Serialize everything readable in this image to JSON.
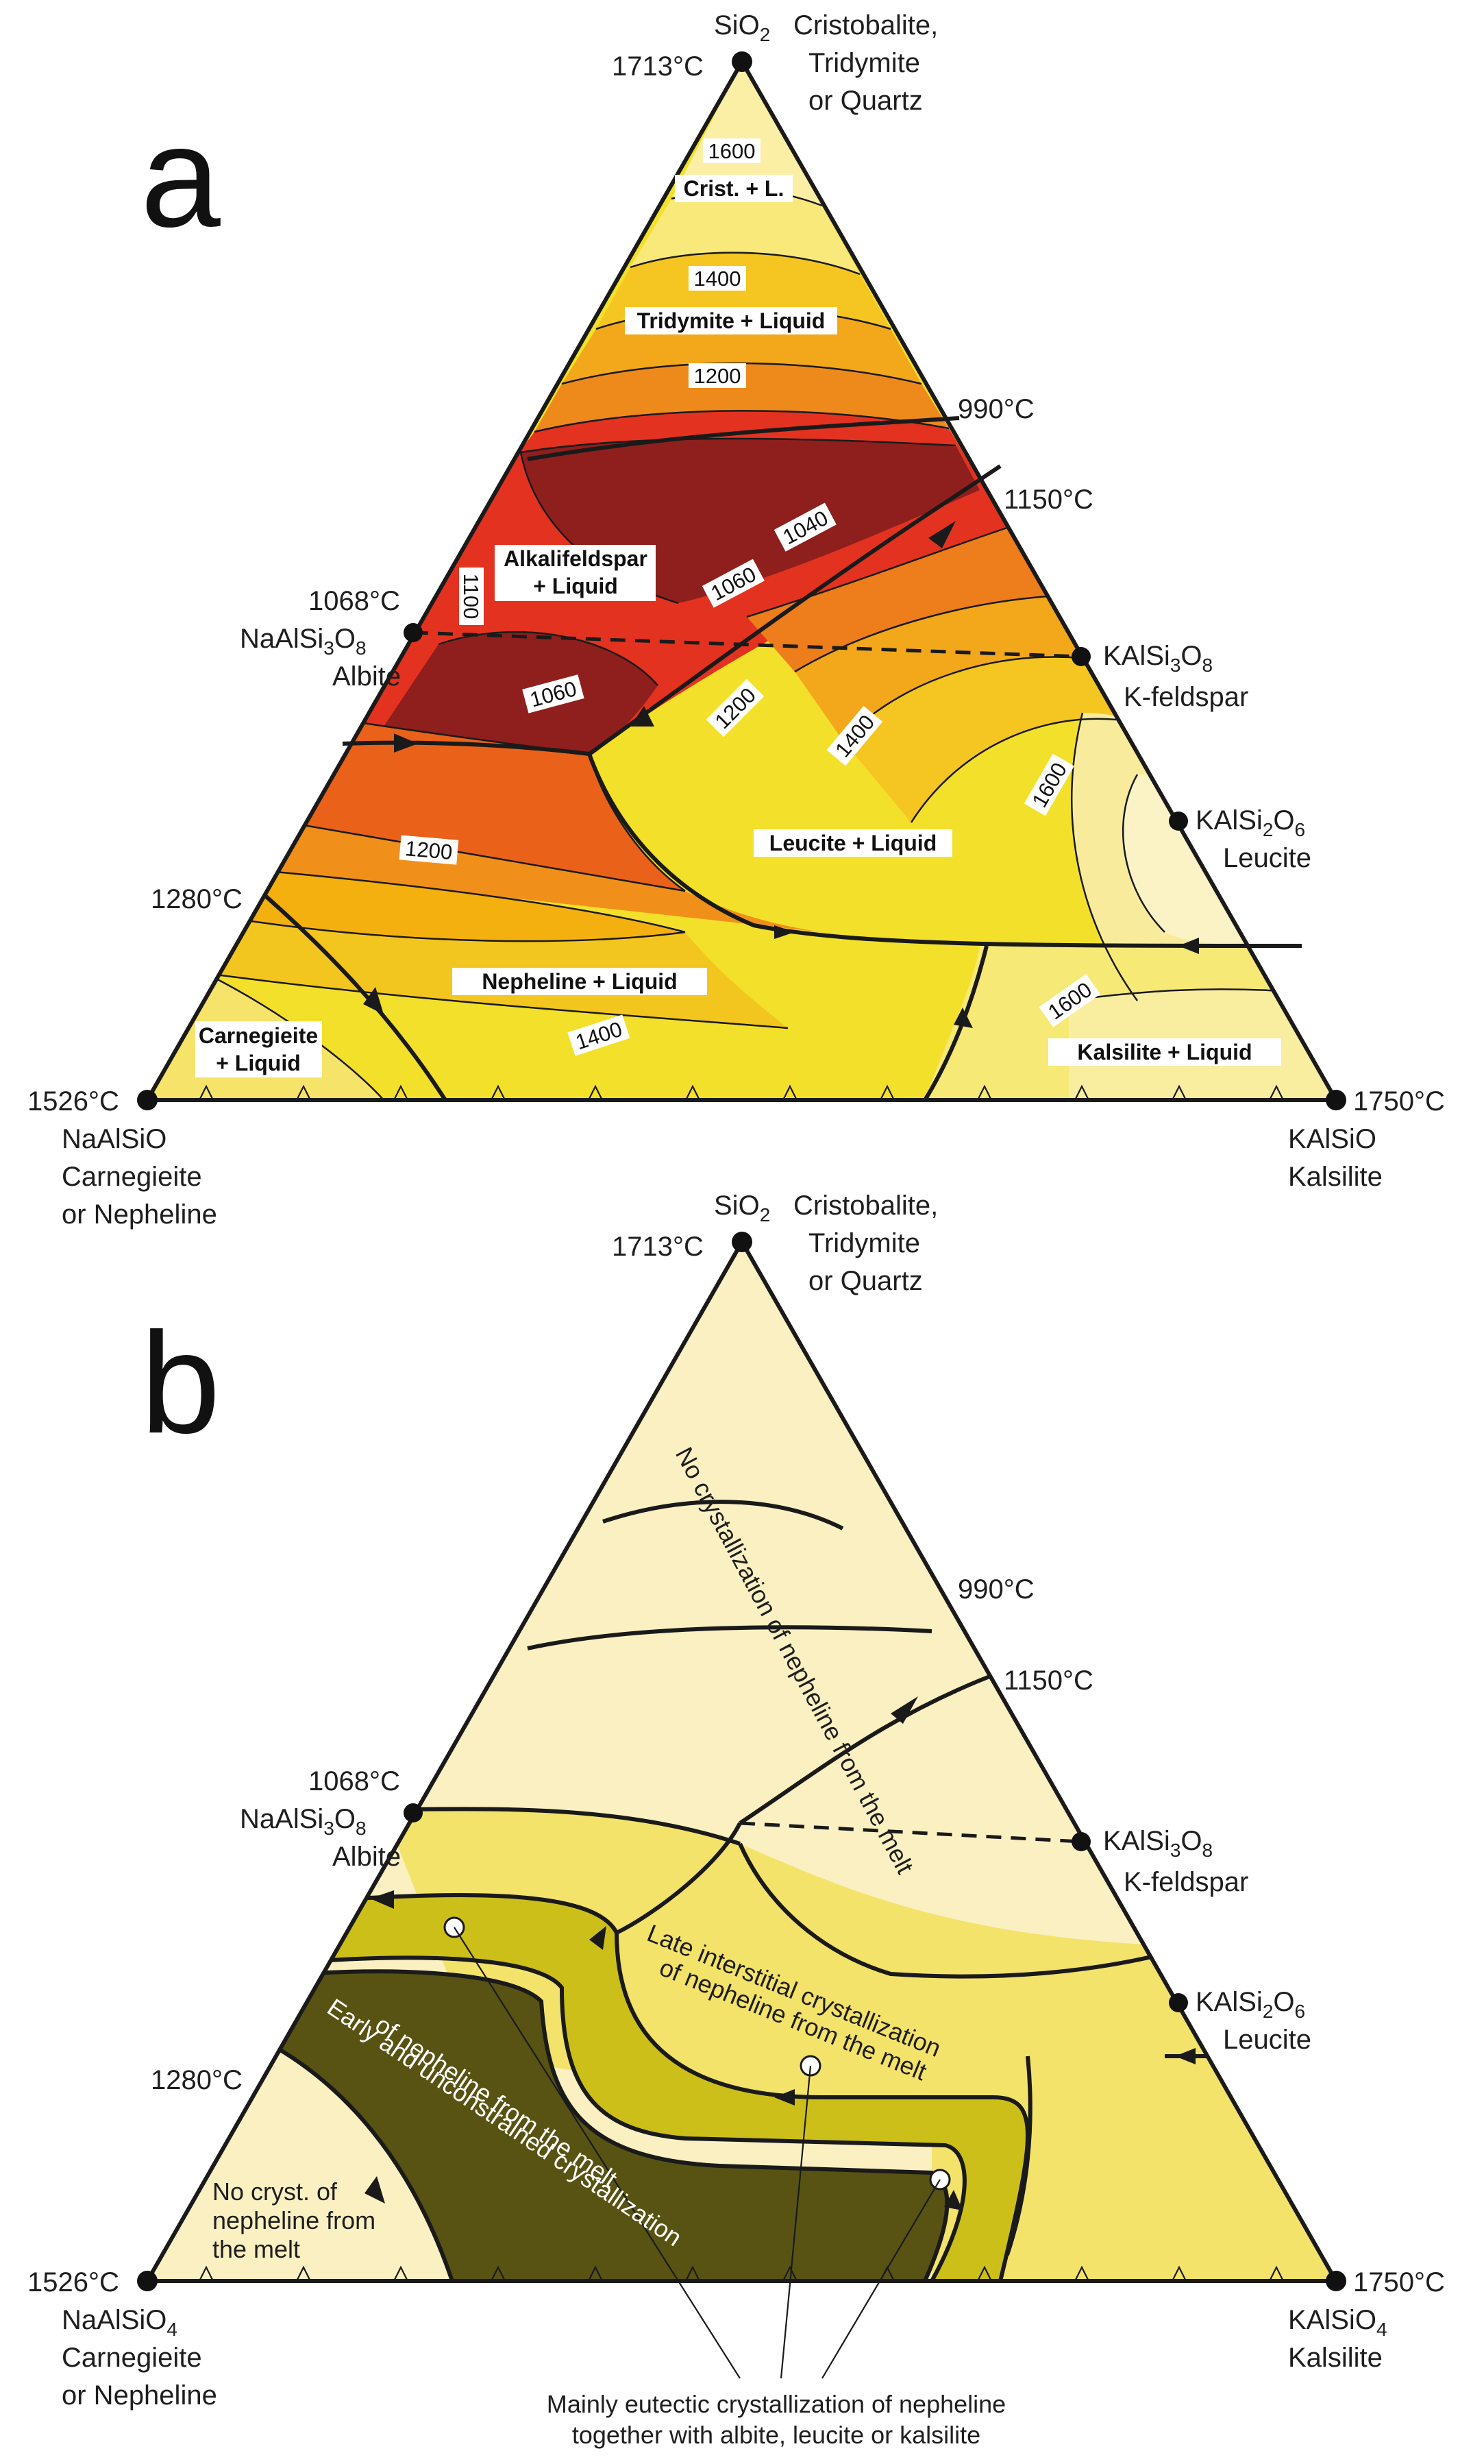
{
  "panel_a": {
    "letter": "a",
    "apexes": {
      "top": {
        "formula_main": "SiO",
        "formula_sub": "2",
        "mineral_1": "Cristobalite,",
        "mineral_2": "Tridymite",
        "mineral_3": "or Quartz",
        "temp": "1713°C"
      },
      "left": {
        "formula": "NaAlSiO",
        "mineral_1": "Carnegieite",
        "mineral_2": "or Nepheline",
        "temp": "1526°C"
      },
      "right": {
        "formula": "KAlSiO",
        "mineral": "Kalsilite",
        "temp": "1750°C"
      }
    },
    "points": {
      "albite": {
        "temp": "1068°C",
        "f1": "NaAlSi",
        "s1": "3",
        "f2": "O",
        "s2": "8",
        "name": "Albite"
      },
      "kfeldspar": {
        "f1": "KAlSi",
        "s1": "3",
        "f2": "O",
        "s2": "8",
        "name": "K-feldspar"
      },
      "leucite": {
        "f1": "KAlSi",
        "s1": "2",
        "f2": "O",
        "s2": "6",
        "name": "Leucite"
      }
    },
    "temps": {
      "t990": "990°C",
      "t1150": "1150°C",
      "t1280": "1280°C"
    },
    "fields": {
      "crist": "Crist. + L.",
      "tridymite": "Tridymite + Liquid",
      "alkali_1": "Alkalifeldspar",
      "alkali_2": "+ Liquid",
      "leucite": "Leucite + Liquid",
      "nepheline": "Nepheline + Liquid",
      "carnegieite_1": "Carnegieite",
      "carnegieite_2": "+ Liquid",
      "kalsilite": "Kalsilite + Liquid"
    },
    "isotherms": [
      "1600",
      "1400",
      "1200",
      "1100",
      "1040",
      "1060",
      "1060",
      "1200",
      "1400",
      "1600",
      "1200",
      "1400",
      "1600"
    ]
  },
  "panel_b": {
    "letter": "b",
    "apexes": {
      "top": {
        "formula_main": "SiO",
        "formula_sub": "2",
        "mineral_1": "Cristobalite,",
        "mineral_2": "Tridymite",
        "mineral_3": "or Quartz",
        "temp": "1713°C"
      },
      "left": {
        "formula_main": "NaAlSiO",
        "formula_sub": "4",
        "mineral_1": "Carnegieite",
        "mineral_2": "or Nepheline",
        "temp": "1526°C"
      },
      "right": {
        "formula_main": "KAlSiO",
        "formula_sub": "4",
        "mineral": "Kalsilite",
        "temp": "1750°C"
      }
    },
    "points": {
      "albite": {
        "temp": "1068°C",
        "f1": "NaAlSi",
        "s1": "3",
        "f2": "O",
        "s2": "8",
        "name": "Albite"
      },
      "kfeldspar": {
        "f1": "KAlSi",
        "s1": "3",
        "f2": "O",
        "s2": "8",
        "name": "K-feldspar"
      },
      "leucite": {
        "f1": "KAlSi",
        "s1": "2",
        "f2": "O",
        "s2": "6",
        "name": "Leucite"
      }
    },
    "temps": {
      "t990": "990°C",
      "t1150": "1150°C",
      "t1280": "1280°C"
    },
    "zones": {
      "no_cryst": "No crystallization of nepheline from the melt",
      "late_1": "Late interstitial crystallization",
      "late_2": "of nepheline from the melt",
      "early_1": "Early and unconstrained crystallization",
      "early_2": "of nepheline from the melt",
      "nocryst_1": "No cryst. of",
      "nocryst_2": "nepheline from",
      "nocryst_3": "the melt",
      "eutectic_1": "Mainly eutectic crystallization of nepheline",
      "eutectic_2": "together with albite, leucite or kalsilite"
    }
  },
  "colors": {
    "pale": "#fbf0c0",
    "lightyellow": "#f8e98c",
    "yellow": "#f2df26",
    "amber": "#f5b10f",
    "orange": "#ee7d1b",
    "redorange": "#e8531b",
    "red": "#d8231f",
    "darkred": "#861e1d",
    "olive": "#585313",
    "olivelight": "#cdbf1a"
  }
}
